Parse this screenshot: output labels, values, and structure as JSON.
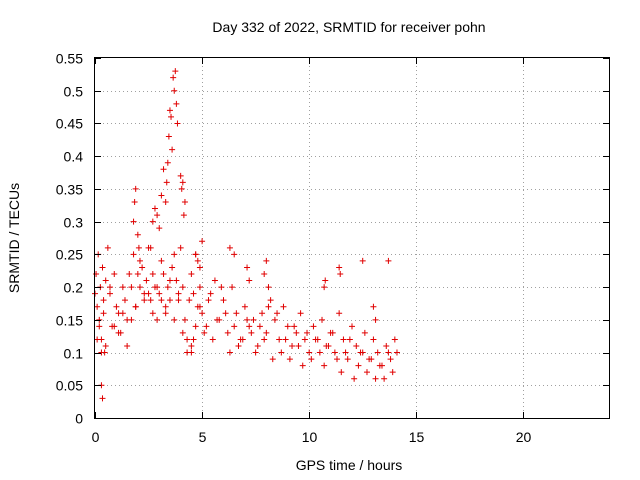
{
  "chart_data": {
    "type": "scatter",
    "title": "Day 332 of 2022, SRMTID for receiver pohn",
    "xlabel": "GPS time / hours",
    "ylabel": "SRMTID / TECUs",
    "xlim": [
      0,
      24
    ],
    "ylim": [
      0,
      0.55
    ],
    "xticks": [
      0,
      5,
      10,
      15,
      20
    ],
    "xtick_labels": [
      "0",
      "5",
      "10",
      "15",
      "20"
    ],
    "yticks": [
      0,
      0.05,
      0.1,
      0.15,
      0.2,
      0.25,
      0.3,
      0.35,
      0.4,
      0.45,
      0.5,
      0.55
    ],
    "ytick_labels": [
      "0",
      "0.05",
      "0.1",
      "0.15",
      "0.2",
      "0.25",
      "0.3",
      "0.35",
      "0.4",
      "0.45",
      "0.5",
      "0.55"
    ],
    "grid": true,
    "marker": "+",
    "color": "#e00000",
    "series": [
      {
        "name": "SRMTID",
        "x": [
          0.0,
          0.05,
          0.1,
          0.15,
          0.2,
          0.25,
          0.3,
          0.35,
          0.4,
          0.45,
          0.5,
          0.6,
          0.7,
          0.8,
          0.9,
          1.0,
          1.1,
          1.2,
          1.3,
          1.4,
          1.5,
          1.6,
          1.7,
          1.8,
          1.9,
          2.0,
          2.1,
          2.2,
          2.3,
          2.4,
          2.5,
          2.6,
          2.7,
          2.8,
          2.9,
          3.0,
          3.1,
          3.2,
          3.3,
          3.4,
          3.5,
          3.6,
          3.7,
          3.8,
          3.9,
          4.0,
          4.1,
          4.2,
          4.3,
          4.4,
          4.5,
          4.6,
          4.7,
          4.8,
          4.9,
          5.0,
          5.2,
          5.4,
          5.6,
          5.8,
          6.0,
          6.2,
          6.4,
          6.6,
          6.8,
          7.0,
          7.2,
          7.4,
          7.6,
          7.8,
          8.0,
          8.2,
          8.4,
          8.6,
          8.8,
          9.0,
          9.2,
          9.4,
          9.6,
          9.8,
          10.0,
          10.2,
          10.4,
          10.6,
          10.8,
          11.0,
          11.2,
          11.4,
          11.6,
          11.8,
          12.0,
          12.2,
          12.4,
          12.6,
          12.8,
          13.0,
          13.2,
          13.4,
          13.6,
          13.8,
          14.0,
          14.1,
          0.1,
          0.2,
          0.3,
          0.4,
          0.5,
          0.7,
          0.9,
          1.1,
          1.3,
          1.5,
          1.7,
          1.9,
          2.1,
          2.3,
          2.5,
          2.7,
          2.9,
          3.1,
          3.3,
          3.5,
          3.7,
          3.9,
          4.1,
          4.3,
          4.5,
          4.7,
          4.9,
          5.1,
          5.3,
          5.5,
          5.7,
          5.9,
          6.1,
          6.3,
          6.5,
          6.7,
          6.9,
          7.1,
          7.3,
          7.5,
          7.7,
          7.9,
          8.1,
          8.3,
          8.5,
          8.7,
          8.9,
          9.1,
          9.3,
          9.5,
          9.7,
          9.9,
          10.1,
          10.3,
          10.5,
          10.7,
          10.9,
          11.1,
          11.3,
          11.5,
          11.7,
          11.9,
          12.1,
          12.3,
          12.5,
          12.7,
          12.9,
          13.1,
          13.3,
          13.5,
          13.7,
          13.9,
          0.3,
          0.35,
          1.8,
          1.85,
          1.9,
          2.0,
          2.05,
          3.3,
          3.35,
          3.4,
          3.45,
          3.5,
          3.55,
          3.6,
          3.65,
          3.7,
          3.75,
          3.8,
          3.85,
          2.6,
          2.7,
          2.8,
          2.9,
          3.0,
          3.1,
          3.2,
          4.0,
          4.05,
          4.1,
          4.15,
          4.2,
          4.5,
          4.6,
          4.7,
          4.8,
          4.9,
          5.0,
          6.3,
          6.5,
          7.1,
          7.2,
          7.9,
          8.0,
          8.1,
          10.7,
          10.75,
          11.4,
          11.45,
          12.5,
          13.0,
          13.1,
          13.7
        ],
        "y": [
          0.19,
          0.22,
          0.17,
          0.25,
          0.15,
          0.2,
          0.12,
          0.23,
          0.18,
          0.1,
          0.21,
          0.26,
          0.19,
          0.14,
          0.22,
          0.17,
          0.16,
          0.13,
          0.2,
          0.18,
          0.15,
          0.22,
          0.2,
          0.25,
          0.17,
          0.22,
          0.24,
          0.23,
          0.19,
          0.21,
          0.26,
          0.18,
          0.22,
          0.2,
          0.15,
          0.19,
          0.24,
          0.22,
          0.17,
          0.2,
          0.18,
          0.23,
          0.25,
          0.21,
          0.19,
          0.26,
          0.2,
          0.15,
          0.12,
          0.18,
          0.22,
          0.19,
          0.25,
          0.17,
          0.2,
          0.16,
          0.14,
          0.19,
          0.21,
          0.15,
          0.18,
          0.13,
          0.2,
          0.16,
          0.12,
          0.17,
          0.14,
          0.15,
          0.11,
          0.16,
          0.13,
          0.18,
          0.15,
          0.12,
          0.17,
          0.14,
          0.11,
          0.13,
          0.16,
          0.12,
          0.1,
          0.14,
          0.12,
          0.15,
          0.11,
          0.13,
          0.1,
          0.16,
          0.12,
          0.09,
          0.14,
          0.11,
          0.1,
          0.13,
          0.09,
          0.12,
          0.1,
          0.08,
          0.11,
          0.09,
          0.12,
          0.1,
          0.12,
          0.14,
          0.1,
          0.16,
          0.11,
          0.2,
          0.14,
          0.13,
          0.16,
          0.11,
          0.15,
          0.17,
          0.2,
          0.18,
          0.19,
          0.16,
          0.2,
          0.18,
          0.16,
          0.21,
          0.15,
          0.18,
          0.13,
          0.1,
          0.11,
          0.14,
          0.17,
          0.13,
          0.18,
          0.12,
          0.15,
          0.2,
          0.16,
          0.1,
          0.14,
          0.11,
          0.12,
          0.15,
          0.13,
          0.1,
          0.14,
          0.12,
          0.2,
          0.09,
          0.16,
          0.1,
          0.12,
          0.09,
          0.14,
          0.11,
          0.08,
          0.13,
          0.09,
          0.12,
          0.1,
          0.08,
          0.11,
          0.13,
          0.09,
          0.07,
          0.1,
          0.12,
          0.06,
          0.08,
          0.1,
          0.07,
          0.09,
          0.06,
          0.08,
          0.06,
          0.1,
          0.07,
          0.05,
          0.03,
          0.3,
          0.33,
          0.35,
          0.28,
          0.26,
          0.33,
          0.36,
          0.39,
          0.43,
          0.47,
          0.46,
          0.41,
          0.52,
          0.5,
          0.53,
          0.48,
          0.45,
          0.26,
          0.3,
          0.32,
          0.31,
          0.29,
          0.34,
          0.38,
          0.37,
          0.35,
          0.36,
          0.31,
          0.33,
          0.1,
          0.12,
          0.25,
          0.24,
          0.23,
          0.27,
          0.26,
          0.25,
          0.23,
          0.21,
          0.22,
          0.24,
          0.17,
          0.2,
          0.21,
          0.23,
          0.22,
          0.24,
          0.17,
          0.15,
          0.24
        ]
      }
    ]
  }
}
